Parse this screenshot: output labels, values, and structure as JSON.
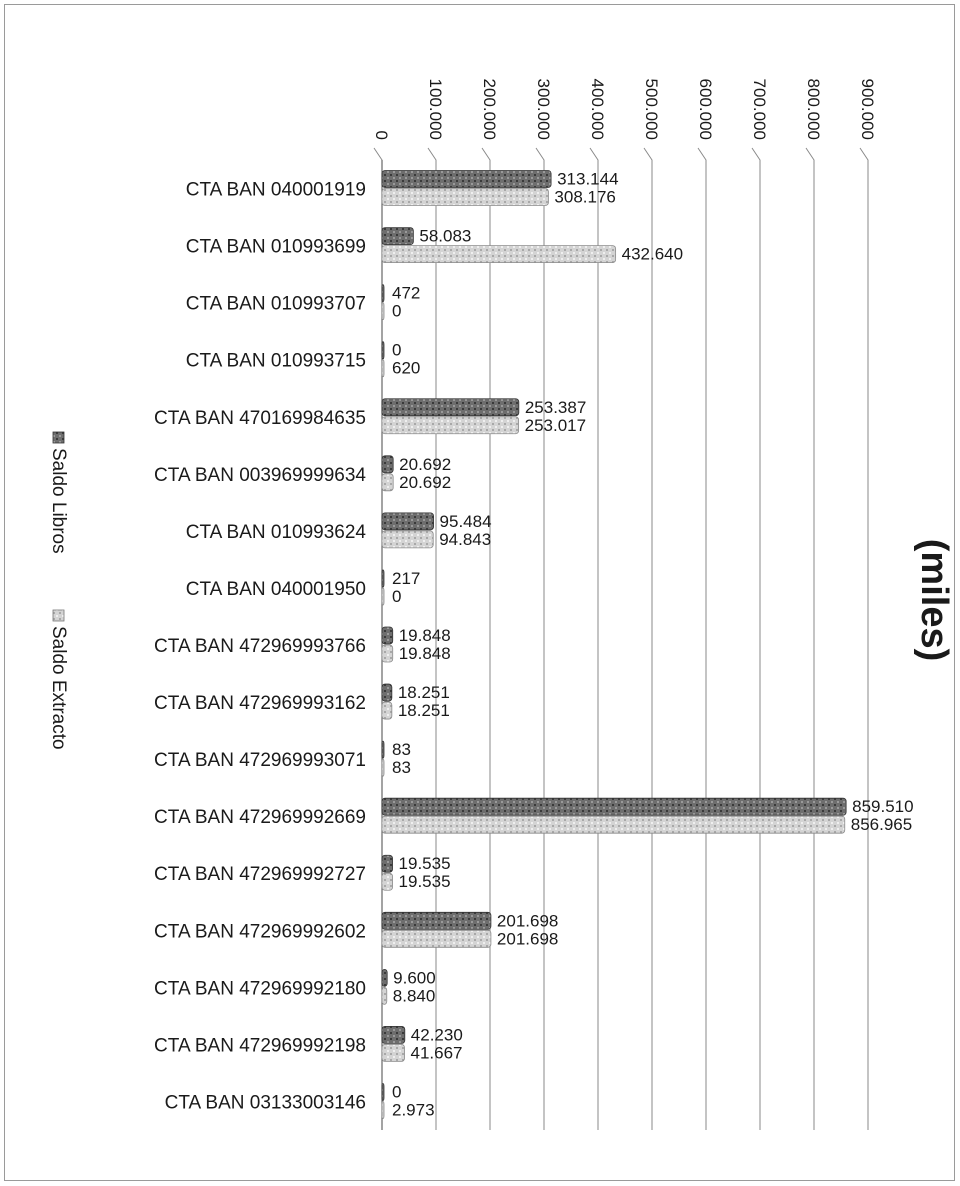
{
  "chart_data": {
    "type": "bar",
    "orientation": "horizontal",
    "unit_label": "(miles)",
    "xlim": [
      0,
      900000
    ],
    "tick_labels": [
      "0",
      "100.000",
      "200.000",
      "300.000",
      "400.000",
      "500.000",
      "600.000",
      "700.000",
      "800.000",
      "900.000"
    ],
    "grid": true,
    "legend_position": "left",
    "categories": [
      "CTA BAN 040001919",
      "CTA BAN 010993699",
      "CTA BAN 010993707",
      "CTA BAN 010993715",
      "CTA BAN 470169984635",
      "CTA BAN 003969999634",
      "CTA BAN 010993624",
      "CTA BAN 040001950",
      "CTA BAN 472969993766",
      "CTA BAN 472969993162",
      "CTA BAN 472969993071",
      "CTA BAN 472969992669",
      "CTA BAN 472969992727",
      "CTA BAN 472969992602",
      "CTA BAN 472969992180",
      "CTA BAN 472969992198",
      "CTA BAN 03133003146"
    ],
    "series": [
      {
        "name": "Saldo Libros",
        "color": "#5a5a5a",
        "values": [
          313144,
          58083,
          472,
          0,
          253387,
          20692,
          95484,
          217,
          19848,
          18251,
          83,
          859510,
          19535,
          201698,
          9600,
          42230,
          0
        ],
        "labels": [
          "313.144",
          "58.083",
          "472",
          "0",
          "253.387",
          "20.692",
          "95.484",
          "217",
          "19.848",
          "18.251",
          "83",
          "859.510",
          "19.535",
          "201.698",
          "9.600",
          "42.230",
          "0"
        ]
      },
      {
        "name": "Saldo Extracto",
        "color": "#c8c8c8",
        "values": [
          308176,
          432640,
          0,
          620,
          253017,
          20692,
          94843,
          0,
          19848,
          18251,
          83,
          856965,
          19535,
          201698,
          8840,
          41667,
          2973
        ],
        "labels": [
          "308.176",
          "432.640",
          "0",
          "620",
          "253.017",
          "20.692",
          "94.843",
          "0",
          "19.848",
          "18.251",
          "83",
          "856.965",
          "19.535",
          "201.698",
          "8.840",
          "41.667",
          "2.973"
        ]
      }
    ]
  }
}
